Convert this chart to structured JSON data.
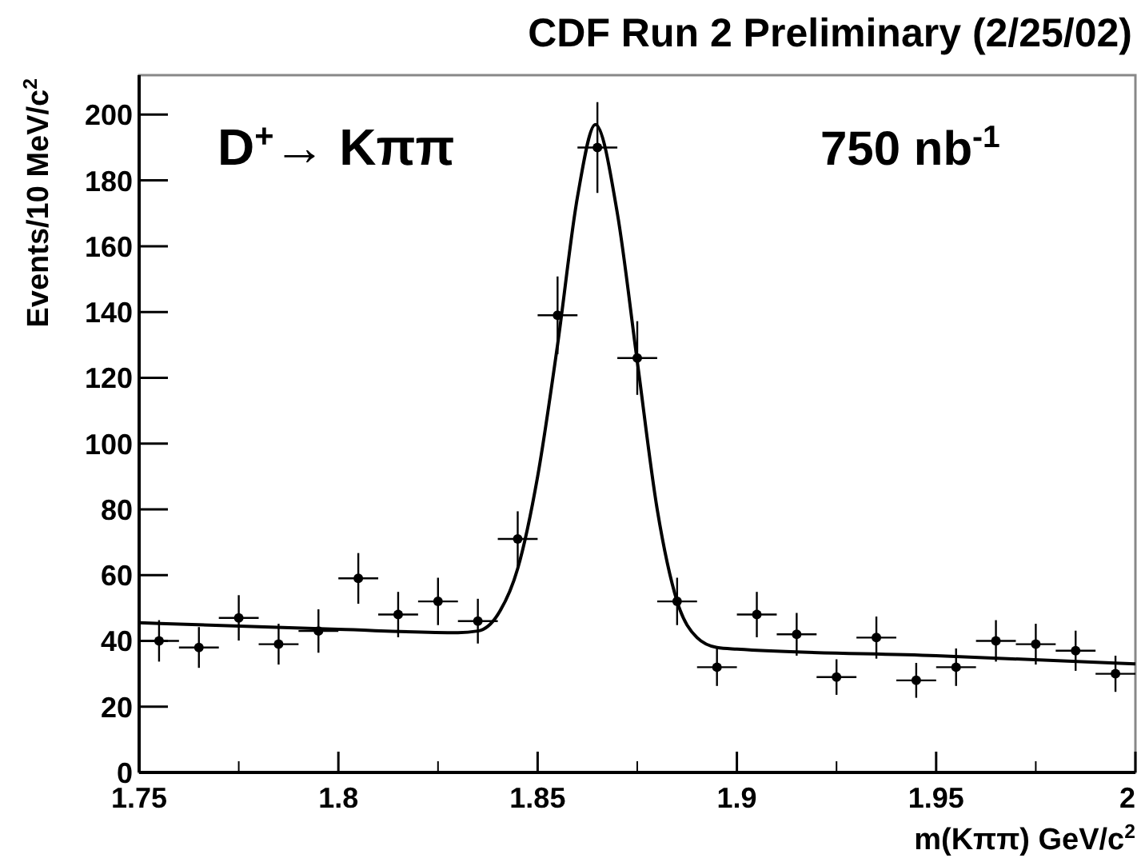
{
  "chart_data": {
    "type": "scatter",
    "title": "CDF Run 2 Preliminary (2/25/02)",
    "xlabel": "m(Kππ)  GeV/c$^{2}$",
    "ylabel": "Events/10 MeV/c$^{2}$",
    "annotations": [
      "D$^{+}$→ Kππ",
      "750 nb$^{-1}$"
    ],
    "xlim": [
      1.75,
      2
    ],
    "ylim": [
      0,
      212
    ],
    "xticks": [
      1.75,
      1.8,
      1.85,
      1.9,
      1.95,
      2
    ],
    "yticks": [
      0,
      20,
      40,
      60,
      80,
      100,
      120,
      140,
      160,
      180,
      200
    ],
    "grid": false,
    "series": [
      {
        "color": "#000000",
        "marker": "circle",
        "x": [
          1.755,
          1.765,
          1.775,
          1.785,
          1.795,
          1.805,
          1.815,
          1.825,
          1.835,
          1.845,
          1.855,
          1.865,
          1.875,
          1.885,
          1.895,
          1.905,
          1.915,
          1.925,
          1.935,
          1.945,
          1.955,
          1.965,
          1.975,
          1.985,
          1.995
        ],
        "values": [
          40,
          38,
          47,
          39,
          43,
          59,
          48,
          52,
          46,
          71,
          139,
          190,
          126,
          52,
          32,
          48,
          42,
          29,
          41,
          28,
          32,
          40,
          39,
          37,
          30
        ],
        "errors": [
          6.3,
          6.2,
          6.9,
          6.2,
          6.6,
          7.7,
          6.9,
          7.2,
          6.8,
          8.4,
          11.8,
          13.8,
          11.2,
          7.2,
          5.7,
          6.9,
          6.5,
          5.4,
          6.4,
          5.3,
          5.7,
          6.3,
          6.2,
          6.1,
          5.5
        ],
        "xerrors": [
          0.005,
          0.005,
          0.005,
          0.005,
          0.005,
          0.005,
          0.005,
          0.005,
          0.005,
          0.005,
          0.005,
          0.005,
          0.005,
          0.005,
          0.005,
          0.005,
          0.005,
          0.005,
          0.005,
          0.005,
          0.005,
          0.005,
          0.005,
          0.005,
          0.005
        ]
      },
      {
        "type": "line",
        "color": "#000000",
        "line_style": "solid",
        "x": [
          1.75,
          1.8,
          1.83,
          1.835,
          1.84,
          1.845,
          1.85,
          1.855,
          1.86,
          1.8645,
          1.87,
          1.875,
          1.88,
          1.885,
          1.89,
          1.895,
          1.9,
          1.95,
          2.0
        ],
        "values": [
          45.5,
          43.5,
          42.5,
          43,
          48,
          62,
          90,
          130,
          175,
          197,
          170,
          125,
          80,
          52,
          41,
          38,
          37.5,
          35.5,
          33
        ]
      }
    ]
  }
}
